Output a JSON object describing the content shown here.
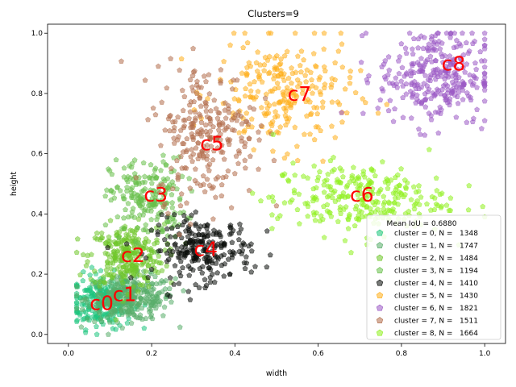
{
  "chart_data": {
    "type": "scatter",
    "title": "Clusters=9",
    "xlabel": "width",
    "ylabel": "height",
    "xlim": [
      -0.05,
      1.05
    ],
    "ylim": [
      -0.03,
      1.03
    ],
    "xticks": [
      "0.0",
      "0.2",
      "0.4",
      "0.6",
      "0.8",
      "1.0"
    ],
    "xtick_values": [
      0.0,
      0.2,
      0.4,
      0.6,
      0.8,
      1.0
    ],
    "yticks": [
      "0.0",
      "0.2",
      "0.4",
      "0.6",
      "0.8",
      "1.0"
    ],
    "ytick_values": [
      0.0,
      0.2,
      0.4,
      0.6,
      0.8,
      1.0
    ],
    "grid": false,
    "legend_position": "lower-right",
    "legend_title": "Mean IoU = 0.6880",
    "series": [
      {
        "name": "cluster = 0, N =   1348",
        "color": "#1cc57d",
        "count": 1348,
        "label": "c0",
        "center": [
          0.08,
          0.11
        ],
        "spread": [
          0.05,
          0.06
        ]
      },
      {
        "name": "cluster = 1, N =   1747",
        "color": "#58ad6a",
        "count": 1747,
        "label": "c1",
        "center": [
          0.15,
          0.12
        ],
        "spread": [
          0.07,
          0.05
        ]
      },
      {
        "name": "cluster = 2, N =   1484",
        "color": "#6fc62a",
        "count": 1484,
        "label": "c2",
        "center": [
          0.14,
          0.26
        ],
        "spread": [
          0.06,
          0.07
        ]
      },
      {
        "name": "cluster = 3, N =   1194",
        "color": "#68bf4a",
        "count": 1194,
        "label": "c3",
        "center": [
          0.19,
          0.45
        ],
        "spread": [
          0.06,
          0.09
        ]
      },
      {
        "name": "cluster = 4, N =   1410",
        "color": "#0a0d0a",
        "count": 1410,
        "label": "c4",
        "center": [
          0.32,
          0.28
        ],
        "spread": [
          0.08,
          0.07
        ]
      },
      {
        "name": "cluster = 5, N =   1430",
        "color": "#ffae1a",
        "count": 1430,
        "label": "c7",
        "center": [
          0.52,
          0.8
        ],
        "spread": [
          0.11,
          0.12
        ]
      },
      {
        "name": "cluster = 6, N =   1821",
        "color": "#9b59c4",
        "count": 1821,
        "label": "c8",
        "center": [
          0.88,
          0.86
        ],
        "spread": [
          0.09,
          0.11
        ]
      },
      {
        "name": "cluster = 7, N =   1511",
        "color": "#b26e4c",
        "count": 1511,
        "label": "c5",
        "center": [
          0.33,
          0.67
        ],
        "spread": [
          0.08,
          0.15
        ]
      },
      {
        "name": "cluster = 8, N =   1664",
        "color": "#8ff01e",
        "count": 1664,
        "label": "c6",
        "center": [
          0.7,
          0.45
        ],
        "spread": [
          0.14,
          0.08
        ]
      }
    ],
    "annotations": [
      {
        "text": "c0",
        "x": 0.08,
        "y": 0.105
      },
      {
        "text": "c1",
        "x": 0.135,
        "y": 0.135
      },
      {
        "text": "c2",
        "x": 0.155,
        "y": 0.265
      },
      {
        "text": "c3",
        "x": 0.21,
        "y": 0.465
      },
      {
        "text": "c4",
        "x": 0.33,
        "y": 0.285
      },
      {
        "text": "c5",
        "x": 0.345,
        "y": 0.635
      },
      {
        "text": "c6",
        "x": 0.705,
        "y": 0.465
      },
      {
        "text": "c7",
        "x": 0.555,
        "y": 0.8
      },
      {
        "text": "c8",
        "x": 0.925,
        "y": 0.9
      }
    ],
    "annotation_color": "#ff0000"
  }
}
